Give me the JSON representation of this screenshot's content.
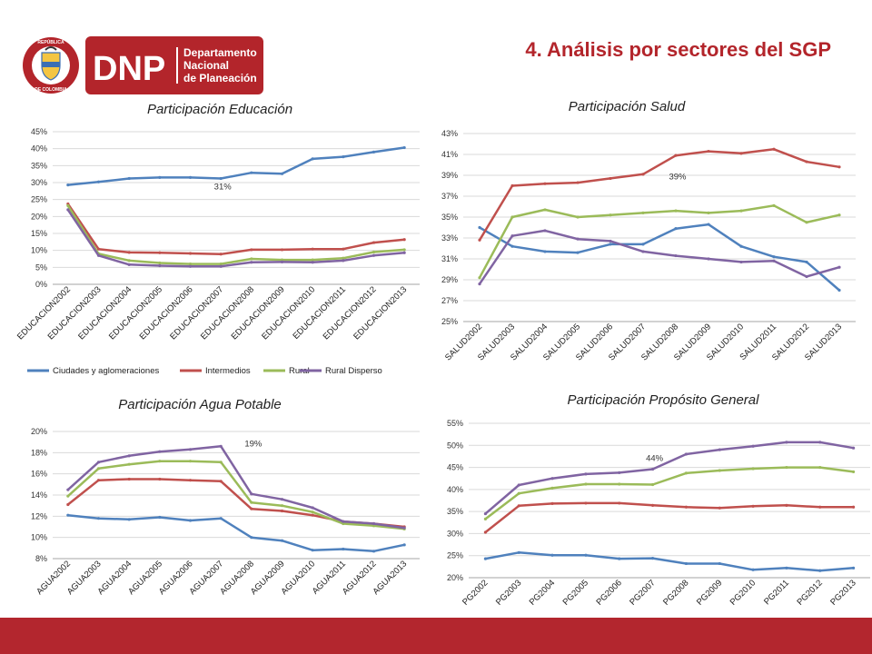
{
  "page": {
    "title": "4. Análisis por sectores del SGP",
    "logo": {
      "seal_text_top": "REPÚBLICA",
      "seal_text_bottom": "DE COLOMBIA",
      "acronym": "DNP",
      "name_line1": "Departamento",
      "name_line2": "Nacional",
      "name_line3": "de Planeación"
    }
  },
  "colors": {
    "brand_red": "#b3252b",
    "footer": "#b3262e",
    "series": [
      "#4f81bd",
      "#c0504d",
      "#9bbb59",
      "#8064a2"
    ]
  },
  "chart_data": [
    {
      "type": "line",
      "title": "Participación Educación",
      "categories": [
        "EDUCACION2002",
        "EDUCACION2003",
        "EDUCACION2004",
        "EDUCACION2005",
        "EDUCACION2006",
        "EDUCACION2007",
        "EDUCACION2008",
        "EDUCACION2009",
        "EDUCACION2010",
        "EDUCACION2011",
        "EDUCACION2012",
        "EDUCACION2013"
      ],
      "ylim": [
        0,
        45
      ],
      "ystep": 5,
      "yunit": "%",
      "annotation": {
        "text": "31%",
        "x_index": 5,
        "y": 28
      },
      "legend": "bottom",
      "series": [
        {
          "name": "Ciudades y aglomeraciones",
          "values": [
            29.3,
            30.2,
            31.2,
            31.5,
            31.5,
            31.2,
            32.9,
            32.6,
            37.0,
            37.6,
            39.0,
            40.3
          ]
        },
        {
          "name": "Intermedios",
          "values": [
            23.7,
            10.4,
            9.4,
            9.3,
            9.1,
            8.9,
            10.2,
            10.2,
            10.4,
            10.4,
            12.3,
            13.2
          ]
        },
        {
          "name": "Rural",
          "values": [
            23.2,
            9.0,
            7.0,
            6.3,
            6.0,
            6.0,
            7.5,
            7.2,
            7.2,
            7.7,
            9.5,
            10.2
          ]
        },
        {
          "name": "Rural Disperso",
          "values": [
            22.0,
            8.5,
            5.8,
            5.5,
            5.3,
            5.3,
            6.5,
            6.6,
            6.5,
            7.0,
            8.5,
            9.3
          ]
        }
      ]
    },
    {
      "type": "line",
      "title": "Participación Salud",
      "categories": [
        "SALUD2002",
        "SALUD2003",
        "SALUD2004",
        "SALUD2005",
        "SALUD2006",
        "SALUD2007",
        "SALUD2008",
        "SALUD2009",
        "SALUD2010",
        "SALUD2011",
        "SALUD2012",
        "SALUD2013"
      ],
      "ylim": [
        25,
        43
      ],
      "ystep": 2,
      "yunit": "%",
      "annotation": {
        "text": "39%",
        "x_index": 6,
        "y": 38.6
      },
      "series": [
        {
          "name": "Ciudades y aglomeraciones",
          "values": [
            34.0,
            32.2,
            31.7,
            31.6,
            32.4,
            32.4,
            33.9,
            34.3,
            32.2,
            31.2,
            30.7,
            28.0
          ]
        },
        {
          "name": "Intermedios",
          "values": [
            32.8,
            38.0,
            38.2,
            38.3,
            38.7,
            39.1,
            40.9,
            41.3,
            41.1,
            41.5,
            40.3,
            39.8
          ]
        },
        {
          "name": "Rural",
          "values": [
            29.2,
            35.0,
            35.7,
            35.0,
            35.2,
            35.4,
            35.6,
            35.4,
            35.6,
            36.1,
            34.5,
            35.2
          ]
        },
        {
          "name": "Rural Disperso",
          "values": [
            28.6,
            33.2,
            33.7,
            32.9,
            32.7,
            31.7,
            31.3,
            31.0,
            30.7,
            30.8,
            29.3,
            30.2
          ]
        }
      ]
    },
    {
      "type": "line",
      "title": "Participación Agua Potable",
      "categories": [
        "AGUA2002",
        "AGUA2003",
        "AGUA2004",
        "AGUA2005",
        "AGUA2006",
        "AGUA2007",
        "AGUA2008",
        "AGUA2009",
        "AGUA2010",
        "AGUA2011",
        "AGUA2012",
        "AGUA2013"
      ],
      "ylim": [
        8,
        20
      ],
      "ystep": 2,
      "yunit": "%",
      "annotation": {
        "text": "19%",
        "x_index": 6,
        "y": 18.6
      },
      "series": [
        {
          "name": "Ciudades y aglomeraciones",
          "values": [
            12.1,
            11.8,
            11.7,
            11.9,
            11.6,
            11.8,
            10.0,
            9.7,
            8.8,
            8.9,
            8.7,
            9.3
          ]
        },
        {
          "name": "Intermedios",
          "values": [
            13.1,
            15.4,
            15.5,
            15.5,
            15.4,
            15.3,
            12.7,
            12.5,
            12.1,
            11.5,
            11.3,
            11.0
          ]
        },
        {
          "name": "Rural",
          "values": [
            13.9,
            16.5,
            16.9,
            17.2,
            17.2,
            17.1,
            13.3,
            13.0,
            12.4,
            11.3,
            11.1,
            10.8
          ]
        },
        {
          "name": "Rural Disperso",
          "values": [
            14.5,
            17.1,
            17.7,
            18.1,
            18.3,
            18.6,
            14.1,
            13.6,
            12.8,
            11.5,
            11.3,
            10.9
          ]
        }
      ]
    },
    {
      "type": "line",
      "title": "Participación Propósito General",
      "categories": [
        "PG2002",
        "PG2003",
        "PG2004",
        "PG2005",
        "PG2006",
        "PG2007",
        "PG2008",
        "PG2009",
        "PG2010",
        "PG2011",
        "PG2012",
        "PG2013"
      ],
      "ylim": [
        20,
        55
      ],
      "ystep": 5,
      "yunit": "%",
      "annotation": {
        "text": "44%",
        "x_index": 5,
        "y": 46.5
      },
      "series": [
        {
          "name": "Ciudades y aglomeraciones",
          "values": [
            24.3,
            25.7,
            25.1,
            25.1,
            24.3,
            24.4,
            23.2,
            23.2,
            21.8,
            22.2,
            21.6,
            22.2
          ]
        },
        {
          "name": "Intermedios",
          "values": [
            30.3,
            36.3,
            36.8,
            36.9,
            36.9,
            36.4,
            36.0,
            35.8,
            36.2,
            36.4,
            36.0,
            36.0
          ]
        },
        {
          "name": "Rural",
          "values": [
            33.3,
            39.1,
            40.3,
            41.2,
            41.2,
            41.1,
            43.7,
            44.3,
            44.7,
            45.0,
            45.0,
            44.0
          ]
        },
        {
          "name": "Rural Disperso",
          "values": [
            34.5,
            41.0,
            42.5,
            43.5,
            43.8,
            44.6,
            48.0,
            49.0,
            49.8,
            50.7,
            50.7,
            49.4
          ]
        }
      ]
    }
  ]
}
